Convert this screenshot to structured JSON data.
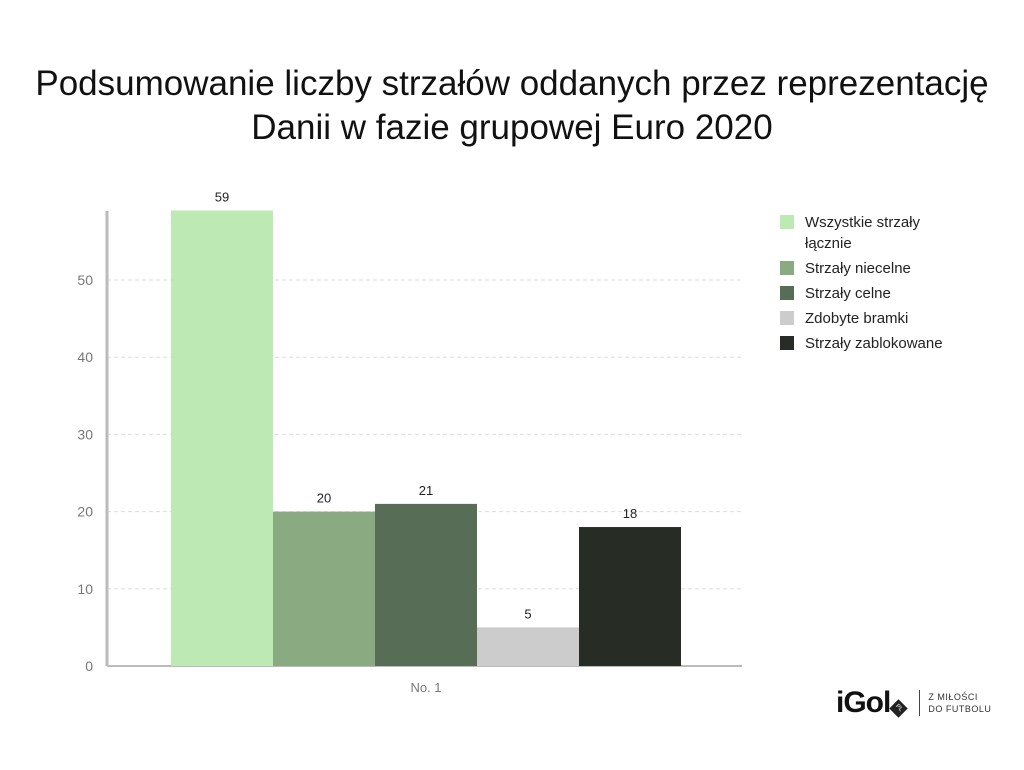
{
  "chart_data": {
    "type": "bar",
    "title": "Podsumowanie liczby strzałów oddanych przez reprezentację Danii w fazie grupowej Euro 2020",
    "categories": [
      "No. 1"
    ],
    "series": [
      {
        "name": "Wszystkie strzały łącznie",
        "values": [
          59
        ],
        "color": "#bdeab4"
      },
      {
        "name": "Strzały niecelne",
        "values": [
          20
        ],
        "color": "#8aab82"
      },
      {
        "name": "Strzały celne",
        "values": [
          21
        ],
        "color": "#586d55"
      },
      {
        "name": "Zdobyte bramki",
        "values": [
          5
        ],
        "color": "#cccccc"
      },
      {
        "name": "Strzały zablokowane",
        "values": [
          18
        ],
        "color": "#272c25"
      }
    ],
    "yticks": [
      0,
      10,
      20,
      30,
      40,
      50
    ],
    "ylim": [
      0,
      59
    ],
    "xlabel": "",
    "ylabel": "",
    "grid": true,
    "legend": "right"
  },
  "logo": {
    "brand": "iGol",
    "badge": "PL",
    "tagline1": "Z MIŁOŚCI",
    "tagline2": "DO FUTBOLU"
  }
}
